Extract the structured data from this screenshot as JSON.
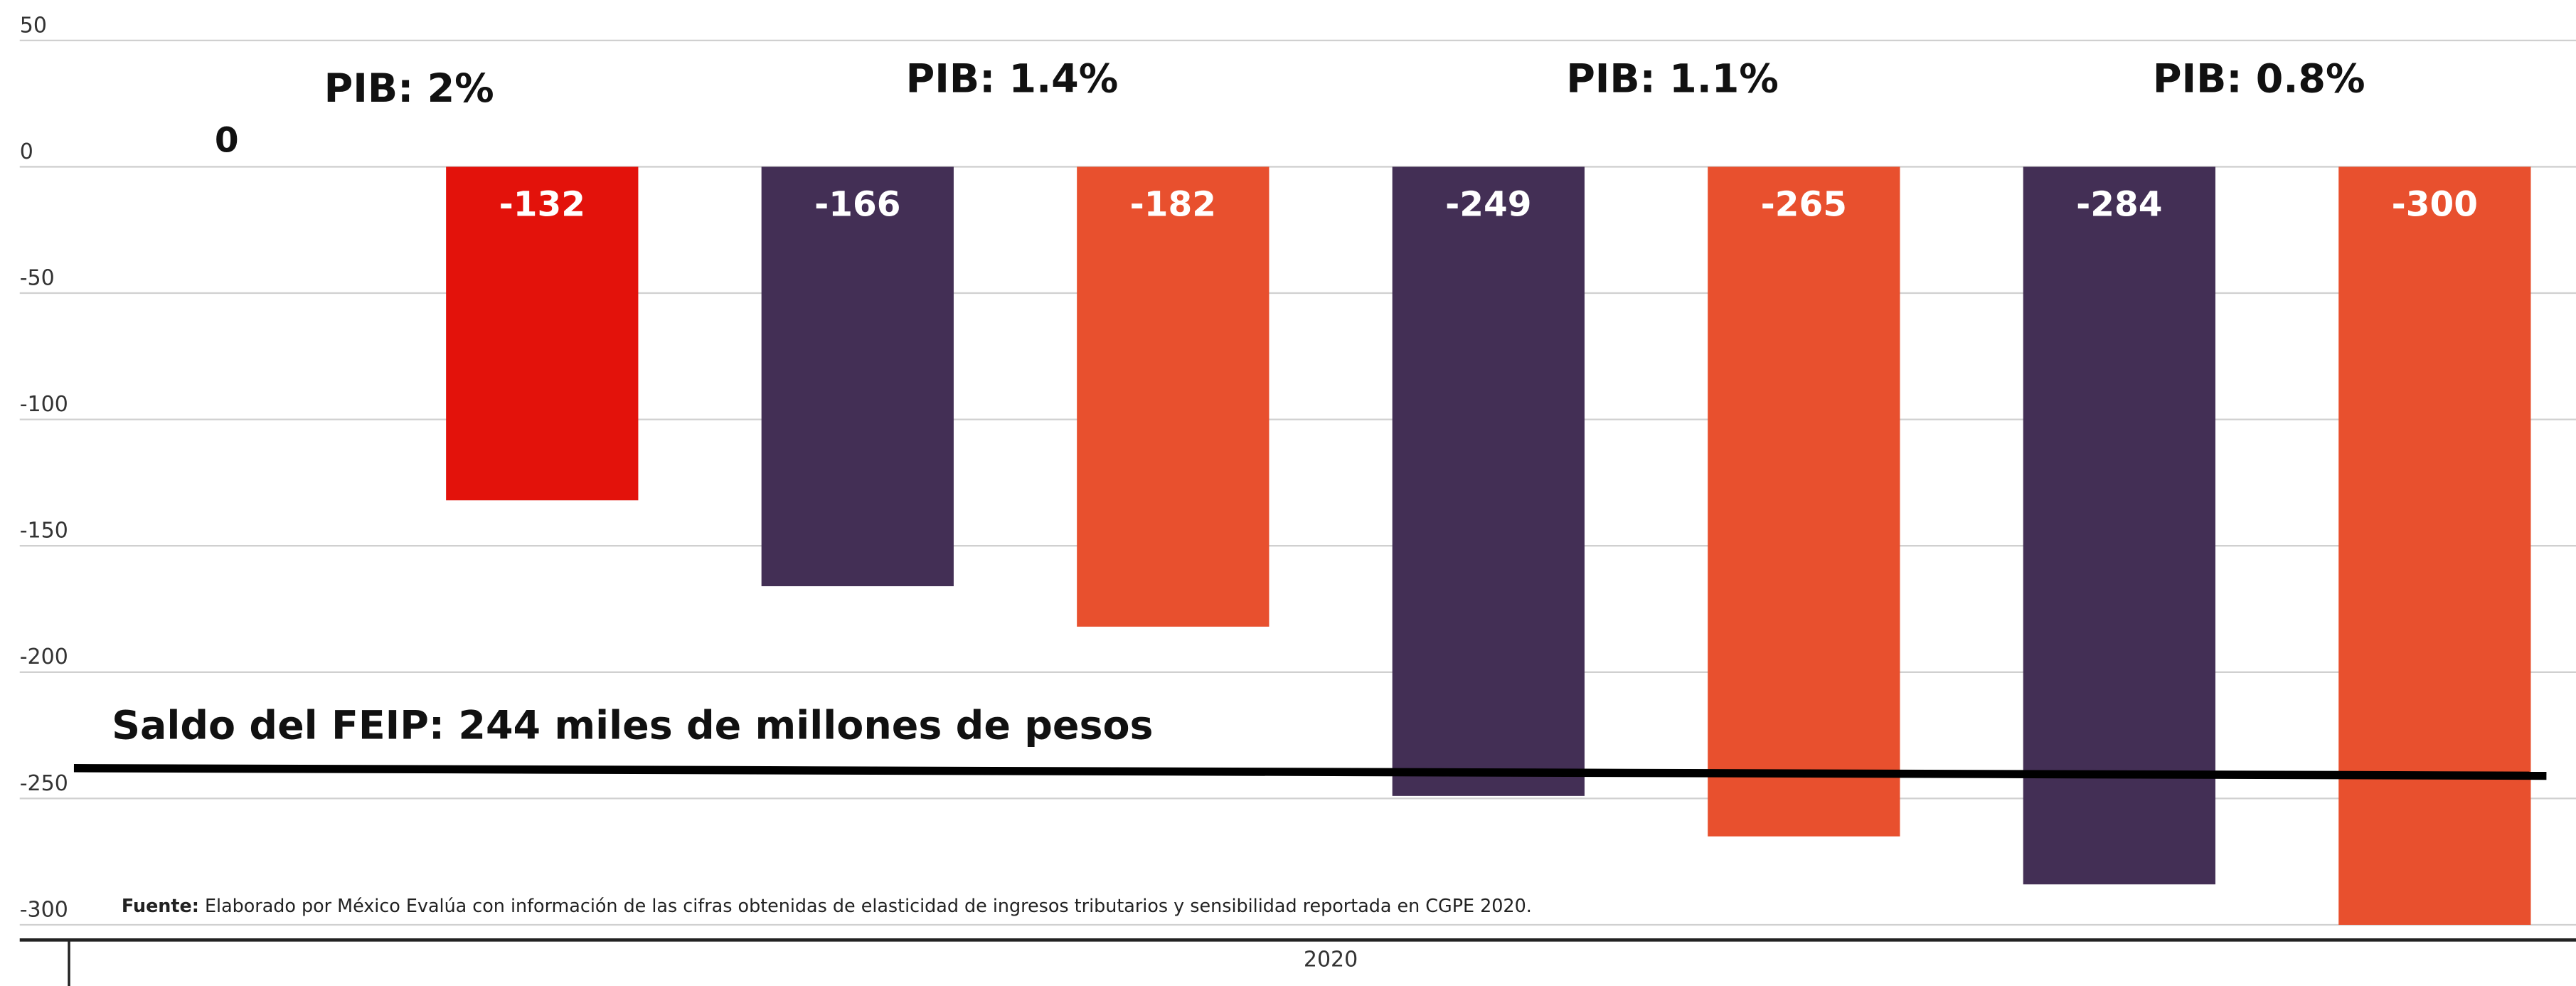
{
  "chart_data": {
    "type": "bar",
    "categories": [
      null,
      null,
      null,
      null,
      null,
      null,
      null,
      null
    ],
    "values": [
      0,
      -132,
      -166,
      -182,
      -249,
      -265,
      -284,
      -300
    ],
    "colors": [
      "#e3120b",
      "#e3120b",
      "#432f55",
      "#e8502e",
      "#432f55",
      "#e8502e",
      "#432f55",
      "#e8502e"
    ],
    "ylim": [
      -306,
      66
    ],
    "yticks": [
      50,
      0,
      -50,
      -100,
      -150,
      -200,
      -250,
      -300
    ],
    "grid": true,
    "x_label": "2020",
    "annotations": [
      "PIB: 2%",
      "PIB: 1.4%",
      "PIB: 1.1%",
      "PIB: 0.8%"
    ],
    "reference_line": {
      "label": "Saldo del FEIP: 244 miles de millones de pesos",
      "values": [
        -238,
        -241
      ]
    },
    "source_label": "Fuente:",
    "source": "Elaborado por México Evalúa con información de las cifras obtenidas de elasticidad de ingresos tributarios y sensibilidad reportada en CGPE 2020."
  }
}
